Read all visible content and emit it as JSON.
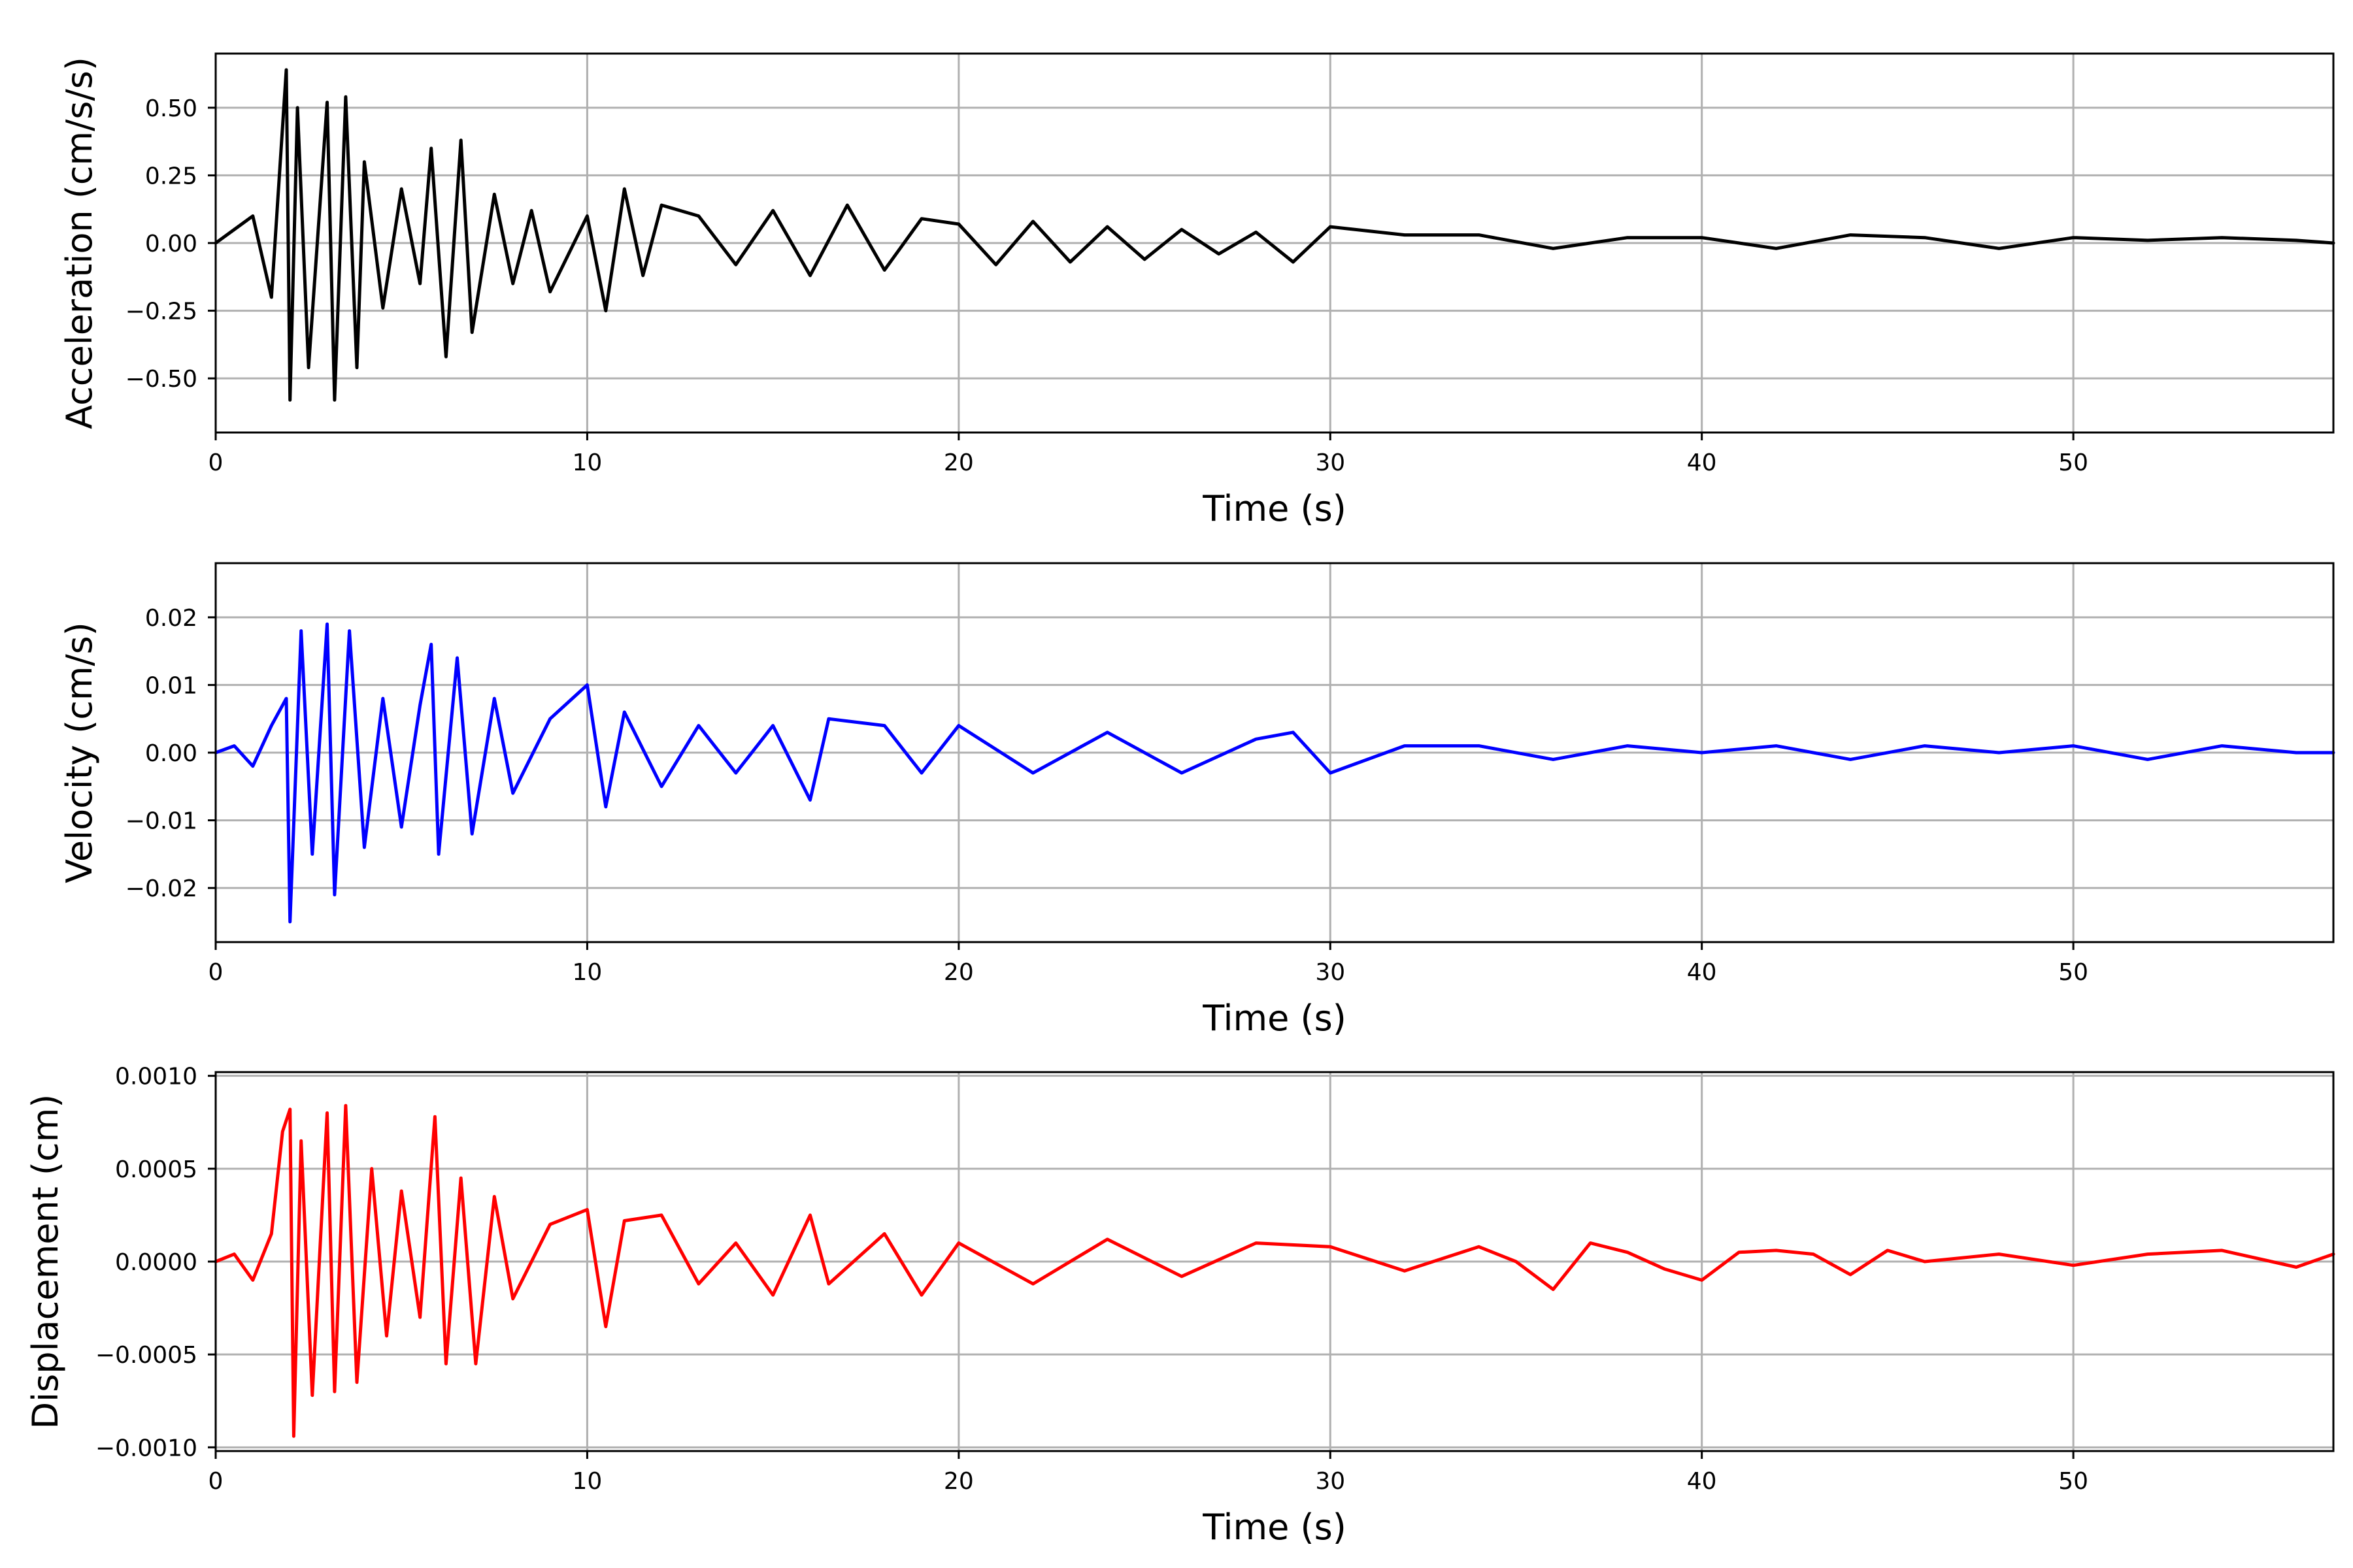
{
  "chart_data": [
    {
      "type": "line",
      "xlabel": "Time (s)",
      "ylabel": "Acceleration (cm/s/s)",
      "xlim": [
        0,
        57
      ],
      "ylim": [
        -0.7,
        0.7
      ],
      "xticks": [
        0,
        10,
        20,
        30,
        40,
        50
      ],
      "yticks": [
        -0.5,
        -0.25,
        0.0,
        0.25,
        0.5
      ],
      "ytick_labels": [
        "−0.50",
        "−0.25",
        "0.00",
        "0.25",
        "0.50"
      ],
      "grid": true,
      "color": "#000000",
      "series": [
        {
          "x": [
            0,
            0.5,
            1,
            1.5,
            1.9,
            2.0,
            2.2,
            2.5,
            3.0,
            3.2,
            3.5,
            3.8,
            4.0,
            4.5,
            5.0,
            5.5,
            5.8,
            6.2,
            6.6,
            6.9,
            7.5,
            8.0,
            8.5,
            9.0,
            10.0,
            10.5,
            11.0,
            11.5,
            12.0,
            13.0,
            14.0,
            15.0,
            16.0,
            17.0,
            18.0,
            19.0,
            20.0,
            21.0,
            22.0,
            23.0,
            24.0,
            25.0,
            26.0,
            27.0,
            28.0,
            29.0,
            30.0,
            32.0,
            34.0,
            36.0,
            38.0,
            40.0,
            42.0,
            44.0,
            46.0,
            48.0,
            50.0,
            52.0,
            54.0,
            56.0,
            57.0
          ],
          "y": [
            0.0,
            0.05,
            0.1,
            -0.2,
            0.64,
            -0.58,
            0.5,
            -0.46,
            0.52,
            -0.58,
            0.54,
            -0.46,
            0.3,
            -0.24,
            0.2,
            -0.15,
            0.35,
            -0.42,
            0.38,
            -0.33,
            0.18,
            -0.15,
            0.12,
            -0.18,
            0.1,
            -0.25,
            0.2,
            -0.12,
            0.14,
            0.1,
            -0.08,
            0.12,
            -0.12,
            0.14,
            -0.1,
            0.09,
            0.07,
            -0.08,
            0.08,
            -0.07,
            0.06,
            -0.06,
            0.05,
            -0.04,
            0.04,
            -0.07,
            0.06,
            0.03,
            0.03,
            -0.02,
            0.02,
            0.02,
            -0.02,
            0.03,
            0.02,
            -0.02,
            0.02,
            0.01,
            0.02,
            0.01,
            0.0
          ]
        }
      ]
    },
    {
      "type": "line",
      "xlabel": "Time (s)",
      "ylabel": "Velocity (cm/s)",
      "xlim": [
        0,
        57
      ],
      "ylim": [
        -0.028,
        0.028
      ],
      "xticks": [
        0,
        10,
        20,
        30,
        40,
        50
      ],
      "yticks": [
        -0.02,
        -0.01,
        0.0,
        0.01,
        0.02
      ],
      "ytick_labels": [
        "−0.02",
        "−0.01",
        "0.00",
        "0.01",
        "0.02"
      ],
      "grid": true,
      "color": "#0000ff",
      "series": [
        {
          "x": [
            0,
            0.5,
            1,
            1.5,
            1.9,
            2.0,
            2.3,
            2.6,
            3.0,
            3.2,
            3.6,
            4.0,
            4.5,
            5.0,
            5.5,
            5.8,
            6.0,
            6.5,
            6.9,
            7.5,
            8.0,
            9.0,
            10.0,
            10.5,
            11.0,
            12.0,
            13.0,
            14.0,
            15.0,
            16.0,
            16.5,
            18.0,
            19.0,
            20.0,
            22.0,
            24.0,
            26.0,
            28.0,
            29.0,
            30.0,
            32.0,
            34.0,
            36.0,
            38.0,
            40.0,
            42.0,
            44.0,
            46.0,
            48.0,
            50.0,
            52.0,
            54.0,
            56.0,
            57.0
          ],
          "y": [
            0.0,
            0.001,
            -0.002,
            0.004,
            0.008,
            -0.025,
            0.018,
            -0.015,
            0.019,
            -0.021,
            0.018,
            -0.014,
            0.008,
            -0.011,
            0.007,
            0.016,
            -0.015,
            0.014,
            -0.012,
            0.008,
            -0.006,
            0.005,
            0.01,
            -0.008,
            0.006,
            -0.005,
            0.004,
            -0.003,
            0.004,
            -0.007,
            0.005,
            0.004,
            -0.003,
            0.004,
            -0.003,
            0.003,
            -0.003,
            0.002,
            0.003,
            -0.003,
            0.001,
            0.001,
            -0.001,
            0.001,
            0.0,
            0.001,
            -0.001,
            0.001,
            0.0,
            0.001,
            -0.001,
            0.001,
            0.0,
            0.0
          ]
        }
      ]
    },
    {
      "type": "line",
      "xlabel": "Time (s)",
      "ylabel": "Displacement (cm)",
      "xlim": [
        0,
        57
      ],
      "ylim": [
        -0.00102,
        0.00102
      ],
      "xticks": [
        0,
        10,
        20,
        30,
        40,
        50
      ],
      "yticks": [
        -0.001,
        -0.0005,
        0.0,
        0.0005,
        0.001
      ],
      "ytick_labels": [
        "−0.0010",
        "−0.0005",
        "0.0000",
        "0.0005",
        "0.0010"
      ],
      "grid": true,
      "color": "#ff0000",
      "series": [
        {
          "x": [
            0,
            0.5,
            1.0,
            1.5,
            1.8,
            2.0,
            2.1,
            2.3,
            2.6,
            3.0,
            3.2,
            3.5,
            3.8,
            4.2,
            4.6,
            5.0,
            5.5,
            5.9,
            6.2,
            6.6,
            7.0,
            7.5,
            8.0,
            9.0,
            10.0,
            10.5,
            11.0,
            12.0,
            13.0,
            14.0,
            15.0,
            16.0,
            16.5,
            18.0,
            19.0,
            20.0,
            22.0,
            24.0,
            26.0,
            28.0,
            30.0,
            32.0,
            34.0,
            35.0,
            36.0,
            37.0,
            38.0,
            39.0,
            40.0,
            41.0,
            42.0,
            43.0,
            44.0,
            45.0,
            46.0,
            48.0,
            50.0,
            52.0,
            54.0,
            56.0,
            57.0
          ],
          "y": [
            0.0,
            4e-05,
            -0.0001,
            0.00015,
            0.0007,
            0.00082,
            -0.00094,
            0.00065,
            -0.00072,
            0.0008,
            -0.0007,
            0.00084,
            -0.00065,
            0.0005,
            -0.0004,
            0.00038,
            -0.0003,
            0.00078,
            -0.00055,
            0.00045,
            -0.00055,
            0.00035,
            -0.0002,
            0.0002,
            0.00028,
            -0.00035,
            0.00022,
            0.00025,
            -0.00012,
            0.0001,
            -0.00018,
            0.00025,
            -0.00012,
            0.00015,
            -0.00018,
            0.0001,
            -0.00012,
            0.00012,
            -8e-05,
            0.0001,
            8e-05,
            -5e-05,
            8e-05,
            0.0,
            -0.00015,
            0.0001,
            5e-05,
            -4e-05,
            -0.0001,
            5e-05,
            6e-05,
            4e-05,
            -7e-05,
            6e-05,
            0.0,
            4e-05,
            -2e-05,
            4e-05,
            6e-05,
            -3e-05,
            4e-05
          ]
        }
      ]
    }
  ]
}
